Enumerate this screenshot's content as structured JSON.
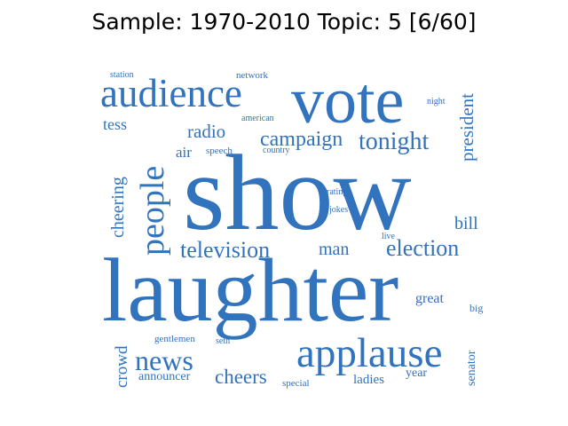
{
  "title": "Sample: 1970-2010 Topic: 5 [6/60]",
  "colors": {
    "word": "#3273be",
    "title": "#000000"
  },
  "words": [
    {
      "text": "show"
    },
    {
      "text": "laughter"
    },
    {
      "text": "vote"
    },
    {
      "text": "audience"
    },
    {
      "text": "applause"
    },
    {
      "text": "people"
    },
    {
      "text": "news"
    },
    {
      "text": "television"
    },
    {
      "text": "election"
    },
    {
      "text": "campaign"
    },
    {
      "text": "tonight"
    },
    {
      "text": "president"
    },
    {
      "text": "cheers"
    },
    {
      "text": "cheering"
    },
    {
      "text": "radio"
    },
    {
      "text": "crowd"
    },
    {
      "text": "tess"
    },
    {
      "text": "man"
    },
    {
      "text": "bill"
    },
    {
      "text": "air"
    },
    {
      "text": "great"
    },
    {
      "text": "senator"
    },
    {
      "text": "announcer"
    },
    {
      "text": "ladies"
    },
    {
      "text": "year"
    },
    {
      "text": "gentlemen"
    },
    {
      "text": "big"
    },
    {
      "text": "special"
    },
    {
      "text": "seth"
    },
    {
      "text": "live"
    },
    {
      "text": "ratings"
    },
    {
      "text": "jokes"
    },
    {
      "text": "speech"
    },
    {
      "text": "country"
    },
    {
      "text": "american"
    },
    {
      "text": "network"
    },
    {
      "text": "station"
    },
    {
      "text": "night"
    }
  ]
}
